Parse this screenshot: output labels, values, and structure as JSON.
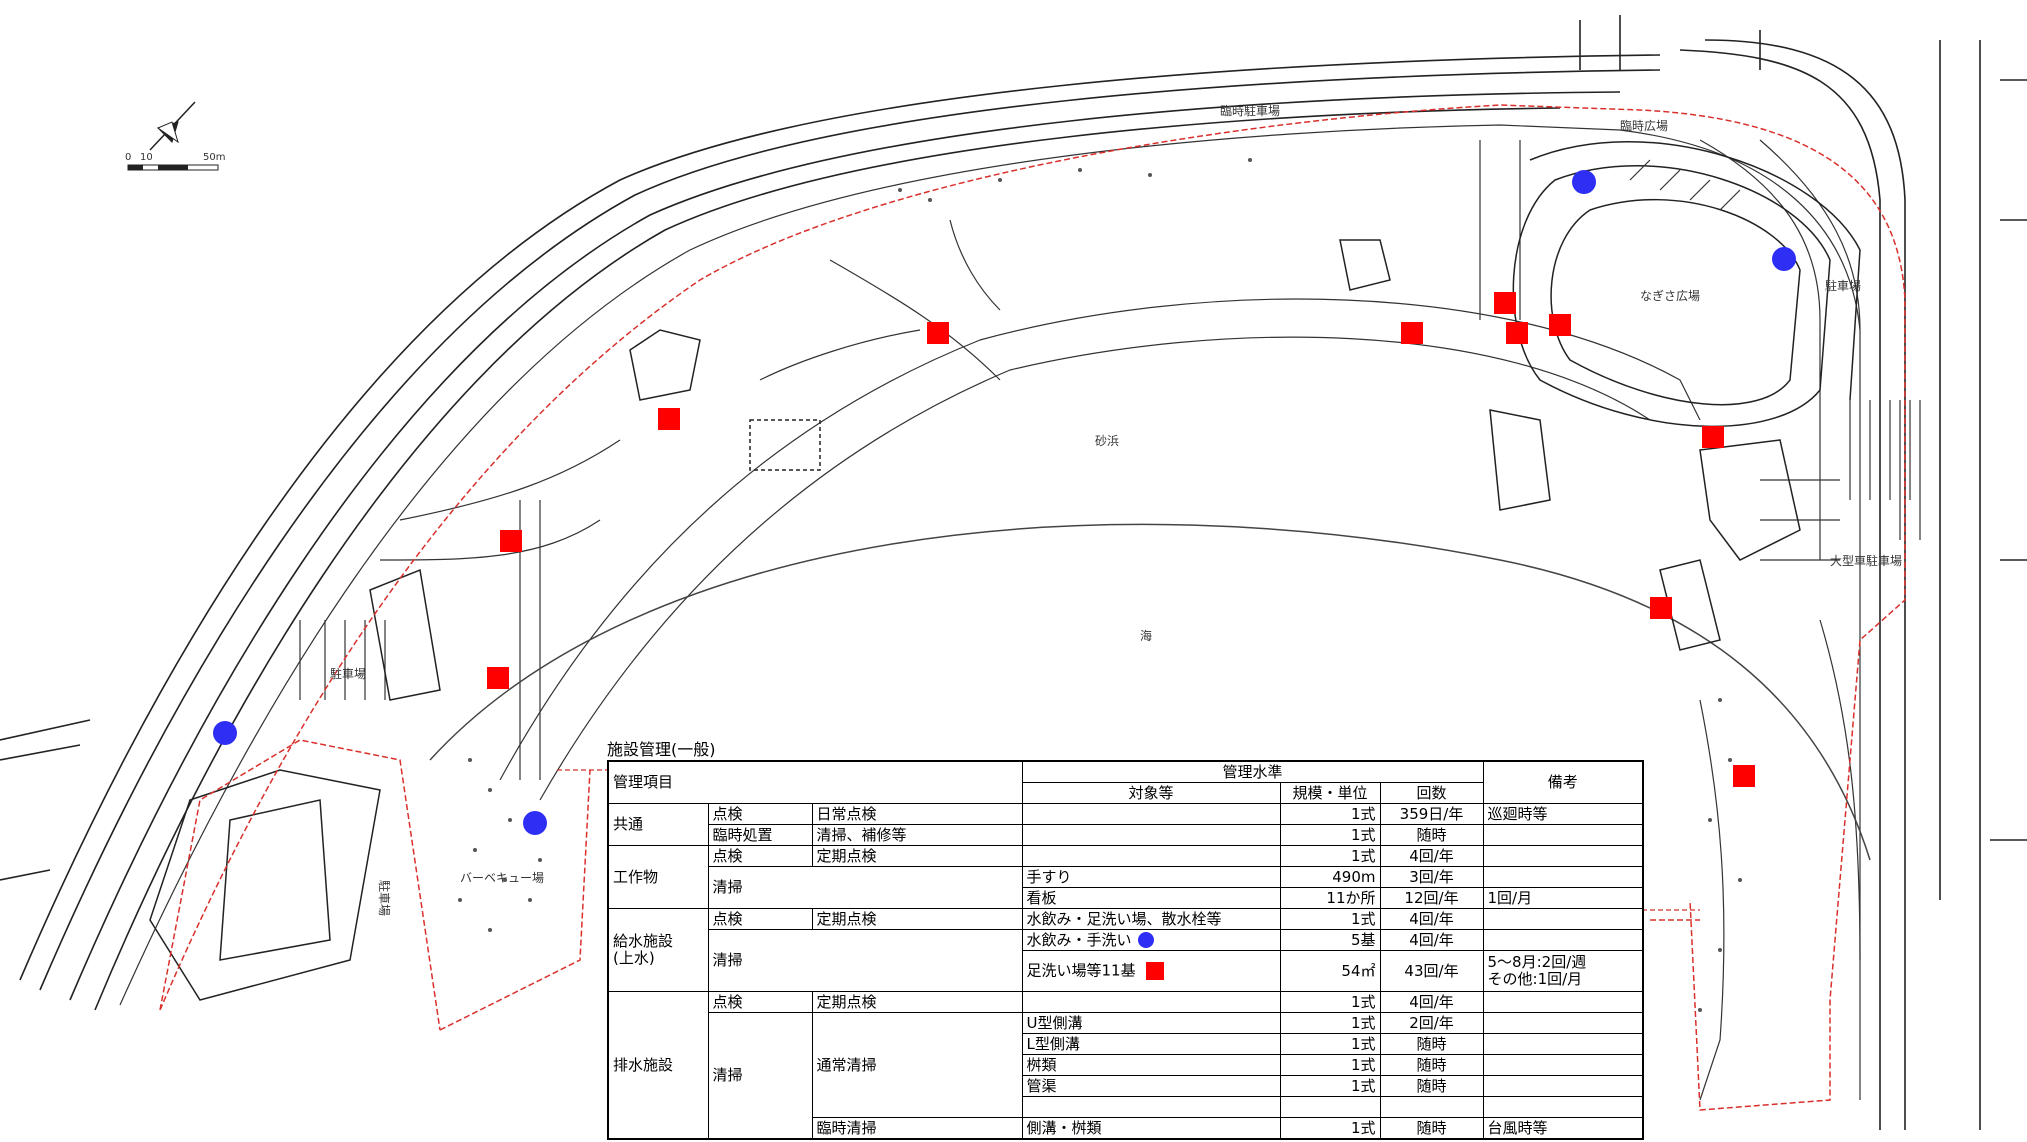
{
  "map": {
    "labels": {
      "top_parking": "臨時駐車場",
      "top_gate": "",
      "east_plaza": "臨時広場",
      "nagisa": "なぎさ広場",
      "east_parking": "駐車場",
      "large_parking": "大型車駐車場",
      "beach": "砂浜",
      "sea": "海",
      "west_parking": "駐車場",
      "bbq": "バーベキュー場",
      "south_parking": "駐車場",
      "scale_0": "0",
      "scale_10": "10",
      "scale_50": "50m"
    },
    "legend_colors": {
      "square": "#ff0000",
      "circle": "#2e2ef5",
      "boundary": "#d9302c"
    }
  },
  "table": {
    "title": "施設管理(一般)",
    "header": {
      "item": "管理項目",
      "standard": "管理水準",
      "target": "対象等",
      "scale": "規模・単位",
      "count": "回数",
      "remarks": "備考"
    },
    "rows": {
      "common": {
        "label": "共通",
        "r1": {
          "a": "点検",
          "b": "日常点検",
          "scale": "1式",
          "count": "359日/年",
          "remarks": "巡廻時等"
        },
        "r2": {
          "a": "臨時処置",
          "b": "清掃、補修等",
          "scale": "1式",
          "count": "随時"
        }
      },
      "structure": {
        "label": "工作物",
        "r1": {
          "a": "点検",
          "b": "定期点検",
          "scale": "1式",
          "count": "4回/年"
        },
        "clean": "清掃",
        "r2": {
          "target": "手すり",
          "scale": "490m",
          "count": "3回/年"
        },
        "r3": {
          "target": "看板",
          "scale": "11か所",
          "count": "12回/年",
          "remarks": "1回/月"
        }
      },
      "water": {
        "label1": "給水施設",
        "label2": "(上水)",
        "r1": {
          "a": "点検",
          "b": "定期点検",
          "target": "水飲み・足洗い場、散水栓等",
          "scale": "1式",
          "count": "4回/年"
        },
        "clean": "清掃",
        "r2": {
          "target": "水飲み・手洗い",
          "scale": "5基",
          "count": "4回/年"
        },
        "r3": {
          "target": "足洗い場等11基",
          "scale": "54㎡",
          "count": "43回/年",
          "remarks1": "5～8月:2回/週",
          "remarks2": "その他:1回/月"
        }
      },
      "drain": {
        "label": "排水施設",
        "r1": {
          "a": "点検",
          "b": "定期点検",
          "scale": "1式",
          "count": "4回/年"
        },
        "clean": "清掃",
        "normal": "通常清掃",
        "r2": {
          "target": "U型側溝",
          "scale": "1式",
          "count": "2回/年"
        },
        "r3": {
          "target": "L型側溝",
          "scale": "1式",
          "count": "随時"
        },
        "r4": {
          "target": "桝類",
          "scale": "1式",
          "count": "随時"
        },
        "r5": {
          "target": "管渠",
          "scale": "1式",
          "count": "随時"
        },
        "r6": {
          "b": "臨時清掃",
          "target": "側溝・桝類",
          "scale": "1式",
          "count": "随時",
          "remarks": "台風時等"
        }
      }
    }
  }
}
